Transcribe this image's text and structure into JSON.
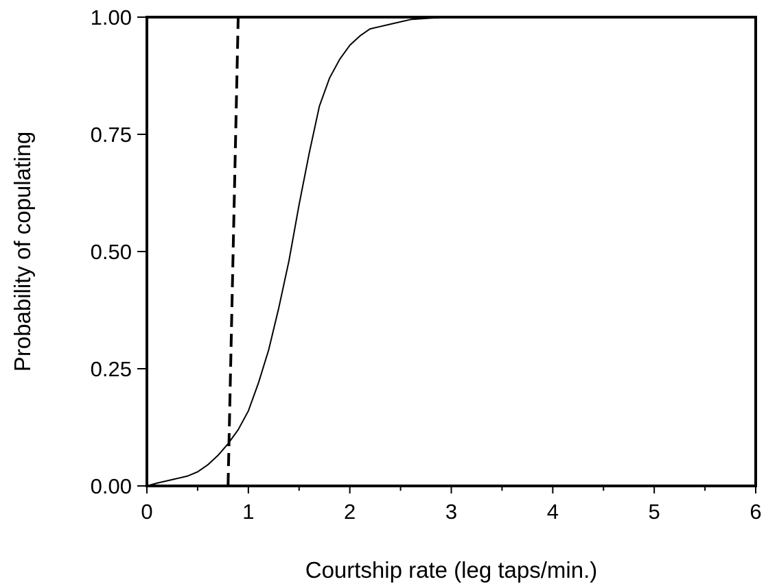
{
  "chart_data": {
    "type": "line",
    "title": "",
    "xlabel": "Courtship rate (leg taps/min.)",
    "ylabel": "Probability of copulating",
    "xlim": [
      0,
      6
    ],
    "ylim": [
      0,
      1
    ],
    "x_ticks": [
      "0",
      "1",
      "2",
      "3",
      "4",
      "5",
      "6"
    ],
    "x_tick_values": [
      0,
      1,
      2,
      3,
      4,
      5,
      6
    ],
    "x_minor_tick_values": [
      0.5,
      1.5,
      2.5,
      3.5,
      4.5,
      5.5
    ],
    "y_ticks": [
      "0.00",
      "0.25",
      "0.50",
      "0.75",
      "1.00"
    ],
    "y_tick_values": [
      0,
      0.25,
      0.5,
      0.75,
      1.0
    ],
    "grid": false,
    "legend": "none",
    "series": [
      {
        "style": "solid",
        "color": "#000000",
        "x": [
          0.0,
          0.1,
          0.2,
          0.3,
          0.4,
          0.5,
          0.6,
          0.7,
          0.8,
          0.9,
          1.0,
          1.1,
          1.2,
          1.3,
          1.4,
          1.5,
          1.6,
          1.7,
          1.8,
          1.9,
          2.0,
          2.1,
          2.2,
          2.3,
          2.4,
          2.6,
          2.8,
          3.0,
          3.2,
          3.4,
          3.6
        ],
        "y": [
          0.0,
          0.006,
          0.011,
          0.016,
          0.021,
          0.03,
          0.045,
          0.065,
          0.09,
          0.12,
          0.16,
          0.22,
          0.29,
          0.38,
          0.48,
          0.6,
          0.71,
          0.81,
          0.87,
          0.91,
          0.94,
          0.96,
          0.975,
          0.98,
          0.985,
          0.995,
          0.998,
          0.999,
          1.0,
          1.0,
          1.0
        ]
      },
      {
        "style": "dashed",
        "color": "#000000",
        "x": [
          0.8,
          0.9
        ],
        "y": [
          0.0,
          1.0
        ]
      }
    ]
  }
}
